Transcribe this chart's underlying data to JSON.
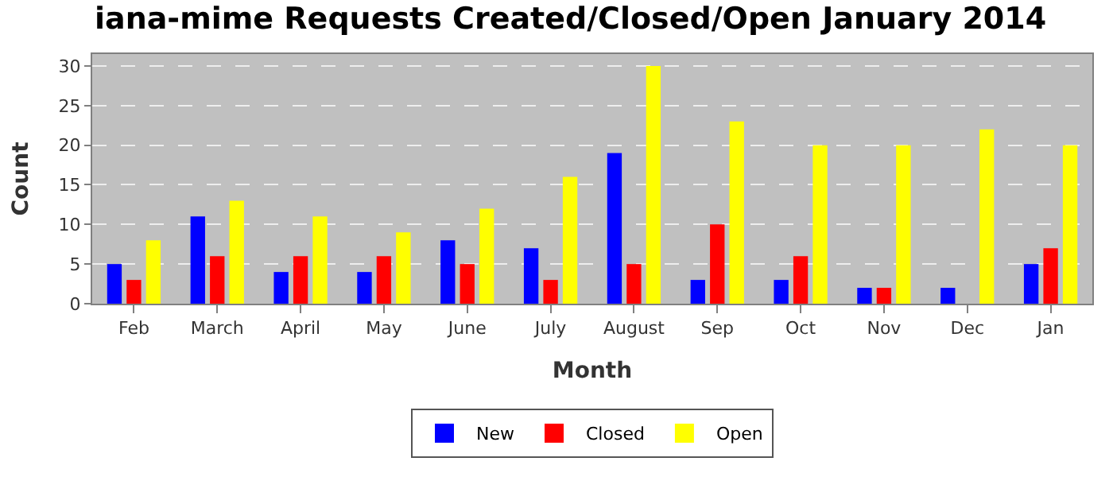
{
  "chart_data": {
    "type": "bar",
    "title": "iana-mime Requests Created/Closed/Open January 2014",
    "xlabel": "Month",
    "ylabel": "Count",
    "categories": [
      "Feb",
      "March",
      "April",
      "May",
      "June",
      "July",
      "August",
      "Sep",
      "Oct",
      "Nov",
      "Dec",
      "Jan"
    ],
    "series": [
      {
        "name": "New",
        "color": "#0000ff",
        "values": [
          5,
          11,
          4,
          4,
          8,
          7,
          19,
          3,
          3,
          2,
          2,
          5
        ]
      },
      {
        "name": "Closed",
        "color": "#ff0000",
        "values": [
          3,
          6,
          6,
          6,
          5,
          3,
          5,
          10,
          6,
          2,
          0,
          7
        ]
      },
      {
        "name": "Open",
        "color": "#ffff00",
        "values": [
          8,
          13,
          11,
          9,
          12,
          16,
          30,
          23,
          20,
          20,
          22,
          20
        ]
      }
    ],
    "ylim": [
      0,
      31.5
    ],
    "yticks": [
      0,
      5,
      10,
      15,
      20,
      25,
      30
    ],
    "grid": "y",
    "legend": "bottom"
  }
}
